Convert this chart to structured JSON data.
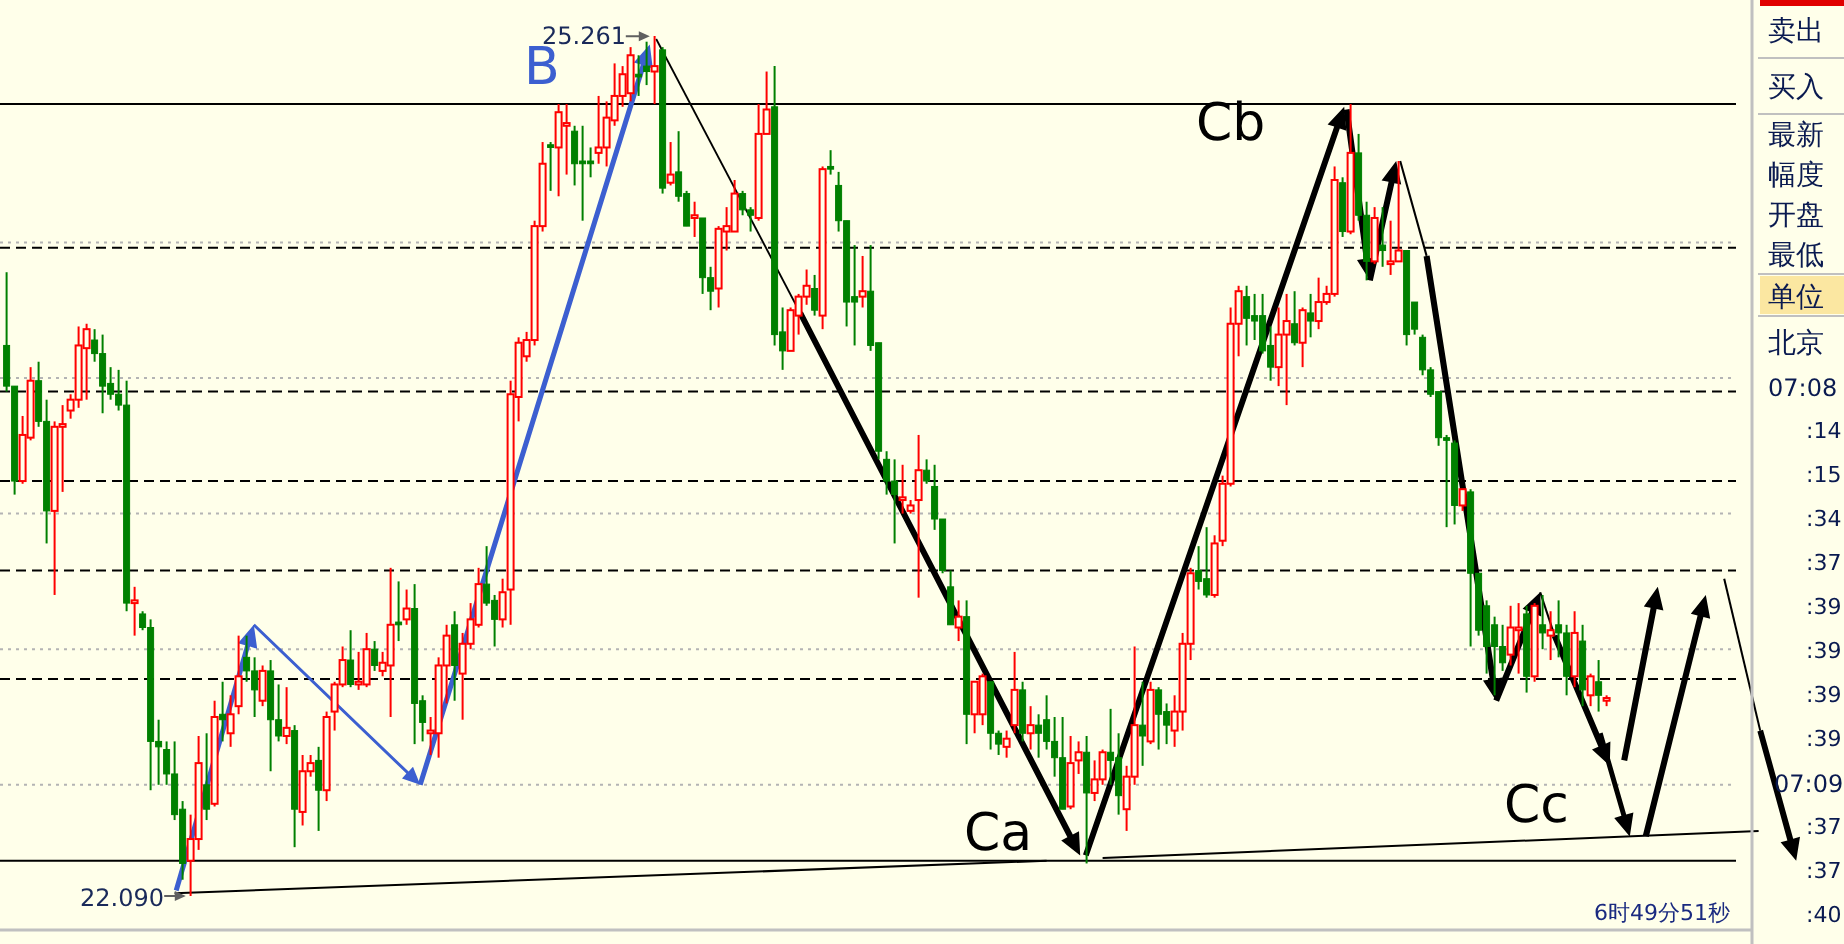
{
  "chart_data": [
    {
      "type": "candlestick",
      "categories": [
        null,
        null,
        null,
        null,
        null,
        null,
        null,
        null,
        null,
        null,
        null,
        null,
        null,
        null,
        null,
        null,
        null,
        null,
        null,
        null,
        null,
        null,
        null,
        null,
        null,
        null,
        null,
        null,
        null,
        null,
        null,
        null,
        null,
        null,
        null,
        null,
        null,
        null,
        null,
        null,
        null,
        null,
        null,
        null,
        null,
        null,
        null,
        null,
        null,
        null,
        null,
        null,
        null,
        null,
        null,
        null,
        null,
        null,
        null,
        null,
        null,
        null,
        null,
        null,
        null,
        null,
        null,
        null,
        null,
        null,
        null,
        null,
        null,
        null,
        null,
        null,
        null,
        null,
        null,
        null,
        null,
        null,
        null,
        null,
        null,
        null,
        null,
        null,
        null,
        null,
        null,
        null,
        null,
        null,
        null,
        null,
        null,
        null,
        null,
        null,
        null,
        null,
        null,
        null,
        null,
        null,
        null,
        null,
        null,
        null,
        null,
        null,
        null,
        null,
        null,
        null,
        null,
        null,
        null,
        null,
        null,
        null,
        null,
        null,
        null,
        null,
        null,
        null,
        null,
        null,
        null,
        null,
        null,
        null,
        null,
        null,
        null,
        null,
        null,
        null,
        null,
        null,
        null,
        null,
        null,
        null,
        null,
        null,
        null,
        null,
        null,
        null,
        null,
        null,
        null,
        null,
        null,
        null,
        null,
        null,
        null,
        null,
        null,
        null,
        null,
        null,
        null,
        null,
        null,
        null,
        null,
        null,
        null,
        null,
        null,
        null,
        null,
        null,
        null,
        null,
        null,
        null,
        null,
        null,
        null,
        null,
        null,
        null,
        null,
        null,
        null,
        null,
        null,
        null,
        null,
        null,
        null,
        null,
        null,
        null,
        null,
        null,
        null,
        null,
        null,
        null,
        null,
        null,
        null,
        null,
        null,
        null,
        null,
        null,
        null,
        null,
        null,
        null,
        null,
        null,
        null,
        null,
        null,
        null
      ],
      "ohlc": [
        [
          24.12,
          24.39,
          23.95,
          23.97
        ],
        [
          23.97,
          23.97,
          23.57,
          23.62
        ],
        [
          23.62,
          23.86,
          23.61,
          23.79
        ],
        [
          23.78,
          24.04,
          23.77,
          23.99
        ],
        [
          23.99,
          24.06,
          23.82,
          23.84
        ],
        [
          23.84,
          23.92,
          23.39,
          23.51
        ],
        [
          23.51,
          23.84,
          23.2,
          23.82
        ],
        [
          23.82,
          23.9,
          23.58,
          23.83
        ],
        [
          23.88,
          23.94,
          23.85,
          23.92
        ],
        [
          23.92,
          24.19,
          23.89,
          24.12
        ],
        [
          24.11,
          24.2,
          23.92,
          24.18
        ],
        [
          24.14,
          24.18,
          24.06,
          24.09
        ],
        [
          24.09,
          24.16,
          23.87,
          23.97
        ],
        [
          23.98,
          24.04,
          23.92,
          23.94
        ],
        [
          23.94,
          24.03,
          23.88,
          23.9
        ],
        [
          23.9,
          23.99,
          23.14,
          23.17
        ],
        [
          23.17,
          23.23,
          23.05,
          23.18
        ],
        [
          23.13,
          23.14,
          23.07,
          23.08
        ],
        [
          23.08,
          23.11,
          22.48,
          22.66
        ],
        [
          22.66,
          22.74,
          22.5,
          22.64
        ],
        [
          22.63,
          22.66,
          22.5,
          22.54
        ],
        [
          22.54,
          22.66,
          22.37,
          22.39
        ],
        [
          22.41,
          22.44,
          22.15,
          22.21
        ],
        [
          22.22,
          22.39,
          22.09,
          22.3
        ],
        [
          22.3,
          22.68,
          22.26,
          22.58
        ],
        [
          22.5,
          22.69,
          22.37,
          22.41
        ],
        [
          22.43,
          22.81,
          22.42,
          22.75
        ],
        [
          22.76,
          22.88,
          22.66,
          22.74
        ],
        [
          22.69,
          22.83,
          22.64,
          22.76
        ],
        [
          22.79,
          23.05,
          22.76,
          22.9
        ],
        [
          22.97,
          23.05,
          22.88,
          22.92
        ],
        [
          22.92,
          22.97,
          22.75,
          22.85
        ],
        [
          22.81,
          22.94,
          22.79,
          22.92
        ],
        [
          22.92,
          22.96,
          22.55,
          22.74
        ],
        [
          22.74,
          22.87,
          22.66,
          22.68
        ],
        [
          22.68,
          22.86,
          22.65,
          22.71
        ],
        [
          22.7,
          22.72,
          22.27,
          22.41
        ],
        [
          22.4,
          22.61,
          22.35,
          22.55
        ],
        [
          22.55,
          22.61,
          22.53,
          22.58
        ],
        [
          22.59,
          22.64,
          22.33,
          22.48
        ],
        [
          22.48,
          22.77,
          22.44,
          22.75
        ],
        [
          22.77,
          22.88,
          22.7,
          22.87
        ],
        [
          22.87,
          23.01,
          22.86,
          22.96
        ],
        [
          22.96,
          23.07,
          22.86,
          22.87
        ],
        [
          22.87,
          22.99,
          22.85,
          22.88
        ],
        [
          22.87,
          23.06,
          22.86,
          23.0
        ],
        [
          23.0,
          23.03,
          22.92,
          22.94
        ],
        [
          22.92,
          22.99,
          22.9,
          22.95
        ],
        [
          22.94,
          23.3,
          22.75,
          23.09
        ],
        [
          23.1,
          23.25,
          23.03,
          23.09
        ],
        [
          23.11,
          23.22,
          23.09,
          23.15
        ],
        [
          23.15,
          23.24,
          22.65,
          22.8
        ],
        [
          22.81,
          22.83,
          22.66,
          22.73
        ],
        [
          22.69,
          22.75,
          22.61,
          22.7
        ],
        [
          22.69,
          22.97,
          22.6,
          22.94
        ],
        [
          22.94,
          23.09,
          22.8,
          23.05
        ],
        [
          23.09,
          23.14,
          22.81,
          22.94
        ],
        [
          22.91,
          23.06,
          22.74,
          23.02
        ],
        [
          23.02,
          23.17,
          23.0,
          23.11
        ],
        [
          23.09,
          23.3,
          23.08,
          23.24
        ],
        [
          23.24,
          23.38,
          23.16,
          23.17
        ],
        [
          23.18,
          23.2,
          23.01,
          23.11
        ],
        [
          23.11,
          23.26,
          23.08,
          23.21
        ],
        [
          23.22,
          23.99,
          23.09,
          23.94
        ],
        [
          23.93,
          24.15,
          23.84,
          24.13
        ],
        [
          24.08,
          24.17,
          24.06,
          24.14
        ],
        [
          24.14,
          24.58,
          24.12,
          24.56
        ],
        [
          24.56,
          24.87,
          24.54,
          24.79
        ],
        [
          24.86,
          24.87,
          24.69,
          24.85
        ],
        [
          24.85,
          25.01,
          24.67,
          24.98
        ],
        [
          24.93,
          25.01,
          24.75,
          24.94
        ],
        [
          24.91,
          24.93,
          24.71,
          24.79
        ],
        [
          24.8,
          24.93,
          24.58,
          24.79
        ],
        [
          24.8,
          24.85,
          24.74,
          24.79
        ],
        [
          24.83,
          25.04,
          24.79,
          24.85
        ],
        [
          24.85,
          25.02,
          24.78,
          24.96
        ],
        [
          24.95,
          25.16,
          24.93,
          25.04
        ],
        [
          25.04,
          25.15,
          25.0,
          25.12
        ],
        [
          25.05,
          25.22,
          25.02,
          25.19
        ],
        [
          25.12,
          25.19,
          25.04,
          25.11
        ],
        [
          25.15,
          25.24,
          25.08,
          25.13
        ],
        [
          25.13,
          25.261,
          25.01,
          25.15
        ],
        [
          25.21,
          25.22,
          24.68,
          24.7
        ],
        [
          24.72,
          24.87,
          24.71,
          24.75
        ],
        [
          24.76,
          24.91,
          24.65,
          24.67
        ],
        [
          24.68,
          24.69,
          24.56,
          24.56
        ],
        [
          24.59,
          24.65,
          24.52,
          24.6
        ],
        [
          24.59,
          24.59,
          24.31,
          24.37
        ],
        [
          24.37,
          24.41,
          24.25,
          24.32
        ],
        [
          24.33,
          24.56,
          24.26,
          24.55
        ],
        [
          24.54,
          24.63,
          24.47,
          24.56
        ],
        [
          24.54,
          24.73,
          24.54,
          24.68
        ],
        [
          24.68,
          24.69,
          24.6,
          24.62
        ],
        [
          24.62,
          24.63,
          24.54,
          24.6
        ],
        [
          24.59,
          25.01,
          24.58,
          24.9
        ],
        [
          24.9,
          25.13,
          24.9,
          24.99
        ],
        [
          25.0,
          25.15,
          24.12,
          24.16
        ],
        [
          24.17,
          24.26,
          24.03,
          24.1
        ],
        [
          24.1,
          24.26,
          24.1,
          24.25
        ],
        [
          24.23,
          24.31,
          24.16,
          24.3
        ],
        [
          24.3,
          24.4,
          24.27,
          24.34
        ],
        [
          24.33,
          24.38,
          24.23,
          24.25
        ],
        [
          24.23,
          24.78,
          24.18,
          24.77
        ],
        [
          24.78,
          24.84,
          24.75,
          24.77
        ],
        [
          24.71,
          24.76,
          24.54,
          24.58
        ],
        [
          24.58,
          24.58,
          24.19,
          24.28
        ],
        [
          24.3,
          24.49,
          24.12,
          24.28
        ],
        [
          24.3,
          24.45,
          24.26,
          24.32
        ],
        [
          24.32,
          24.49,
          24.1,
          24.12
        ],
        [
          24.13,
          24.13,
          23.7,
          23.73
        ],
        [
          23.7,
          23.73,
          23.57,
          23.62
        ],
        [
          23.62,
          23.7,
          23.39,
          23.57
        ],
        [
          23.55,
          23.68,
          23.5,
          23.56
        ],
        [
          23.51,
          23.55,
          23.5,
          23.53
        ],
        [
          23.55,
          23.79,
          23.19,
          23.66
        ],
        [
          23.66,
          23.7,
          23.61,
          23.62
        ],
        [
          23.6,
          23.68,
          23.44,
          23.48
        ],
        [
          23.48,
          23.48,
          23.28,
          23.29
        ],
        [
          23.23,
          23.29,
          23.09,
          23.09
        ],
        [
          23.08,
          23.18,
          23.03,
          23.12
        ],
        [
          23.12,
          23.18,
          22.65,
          22.76
        ],
        [
          22.76,
          22.88,
          22.69,
          22.88
        ],
        [
          22.76,
          22.91,
          22.72,
          22.9
        ],
        [
          22.88,
          22.88,
          22.63,
          22.69
        ],
        [
          22.69,
          22.7,
          22.61,
          22.65
        ],
        [
          22.64,
          22.7,
          22.6,
          22.67
        ],
        [
          22.72,
          22.99,
          22.69,
          22.85
        ],
        [
          22.85,
          22.88,
          22.66,
          22.69
        ],
        [
          22.69,
          22.79,
          22.63,
          22.72
        ],
        [
          22.72,
          22.76,
          22.6,
          22.69
        ],
        [
          22.74,
          22.83,
          22.63,
          22.66
        ],
        [
          22.66,
          22.75,
          22.53,
          22.6
        ],
        [
          22.6,
          22.75,
          22.41,
          22.41
        ],
        [
          22.42,
          22.68,
          22.41,
          22.58
        ],
        [
          22.59,
          22.66,
          22.54,
          22.62
        ],
        [
          22.62,
          22.68,
          22.21,
          22.47
        ],
        [
          22.47,
          22.59,
          22.44,
          22.52
        ],
        [
          22.52,
          22.63,
          22.5,
          22.62
        ],
        [
          22.62,
          22.78,
          22.5,
          22.59
        ],
        [
          22.6,
          22.69,
          22.39,
          22.46
        ],
        [
          22.41,
          22.57,
          22.33,
          22.53
        ],
        [
          22.53,
          23.01,
          22.5,
          22.72
        ],
        [
          22.72,
          22.88,
          22.57,
          22.68
        ],
        [
          22.66,
          22.88,
          22.65,
          22.85
        ],
        [
          22.85,
          22.86,
          22.63,
          22.76
        ],
        [
          22.77,
          22.8,
          22.65,
          22.72
        ],
        [
          22.7,
          22.83,
          22.64,
          22.77
        ],
        [
          22.77,
          23.06,
          22.7,
          23.02
        ],
        [
          23.02,
          23.3,
          22.96,
          23.28
        ],
        [
          23.29,
          23.38,
          23.22,
          23.25
        ],
        [
          23.26,
          23.45,
          23.19,
          23.2
        ],
        [
          23.2,
          23.42,
          23.19,
          23.39
        ],
        [
          23.4,
          23.64,
          23.38,
          23.61
        ],
        [
          23.61,
          24.26,
          23.6,
          24.2
        ],
        [
          24.2,
          24.34,
          24.08,
          24.32
        ],
        [
          24.3,
          24.34,
          24.12,
          24.22
        ],
        [
          24.23,
          24.31,
          24.14,
          24.21
        ],
        [
          24.23,
          24.31,
          24.09,
          24.1
        ],
        [
          24.12,
          24.19,
          23.99,
          24.04
        ],
        [
          24.04,
          24.26,
          23.97,
          24.16
        ],
        [
          24.16,
          24.31,
          23.9,
          24.21
        ],
        [
          24.2,
          24.32,
          24.12,
          24.13
        ],
        [
          24.13,
          24.26,
          24.04,
          24.25
        ],
        [
          24.24,
          24.31,
          24.15,
          24.21
        ],
        [
          24.21,
          24.37,
          24.18,
          24.28
        ],
        [
          24.28,
          24.34,
          24.27,
          24.31
        ],
        [
          24.31,
          24.78,
          24.3,
          24.73
        ],
        [
          24.72,
          24.74,
          24.52,
          24.54
        ],
        [
          24.54,
          25.01,
          24.53,
          24.83
        ],
        [
          24.83,
          24.9,
          24.58,
          24.6
        ],
        [
          24.6,
          24.65,
          24.36,
          24.43
        ],
        [
          24.43,
          24.63,
          24.42,
          24.59
        ],
        [
          24.49,
          24.63,
          24.41,
          24.47
        ],
        [
          24.42,
          24.58,
          24.38,
          24.43
        ],
        [
          24.43,
          24.8,
          24.43,
          24.47
        ],
        [
          24.47,
          24.47,
          24.12,
          24.16
        ],
        [
          24.28,
          24.28,
          24.16,
          24.18
        ],
        [
          24.15,
          24.16,
          24.01,
          24.03
        ],
        [
          24.03,
          24.04,
          23.93,
          23.94
        ],
        [
          23.95,
          23.95,
          23.75,
          23.78
        ],
        [
          23.78,
          23.79,
          23.45,
          23.77
        ],
        [
          23.76,
          23.77,
          23.46,
          23.53
        ],
        [
          23.53,
          23.59,
          23.51,
          23.59
        ],
        [
          23.58,
          23.59,
          23.01,
          23.28
        ],
        [
          23.28,
          23.28,
          23.05,
          23.07
        ],
        [
          23.16,
          23.18,
          22.91,
          23.01
        ],
        [
          23.09,
          23.12,
          22.83,
          23.01
        ],
        [
          23.01,
          23.09,
          22.92,
          22.95
        ],
        [
          22.98,
          23.16,
          22.94,
          23.08
        ],
        [
          23.07,
          23.17,
          22.91,
          23.08
        ],
        [
          23.13,
          23.16,
          22.84,
          22.9
        ],
        [
          22.9,
          23.17,
          22.88,
          23.16
        ],
        [
          23.09,
          23.2,
          23.0,
          23.06
        ],
        [
          23.05,
          23.14,
          22.96,
          23.07
        ],
        [
          23.09,
          23.18,
          22.97,
          23.06
        ],
        [
          23.06,
          23.09,
          22.83,
          22.9
        ],
        [
          22.9,
          23.14,
          22.86,
          23.06
        ],
        [
          23.03,
          23.09,
          22.79,
          22.85
        ],
        [
          22.83,
          22.91,
          22.79,
          22.9
        ],
        [
          22.88,
          22.96,
          22.77,
          22.83
        ],
        [
          22.81,
          22.83,
          22.79,
          22.82
        ],
        null,
        null,
        null,
        null,
        null,
        null,
        null,
        null,
        null,
        null,
        null,
        null,
        null,
        null,
        null,
        null,
        null,
        null,
        null,
        null,
        null,
        null,
        null
      ],
      "ref_lines": [
        {
          "axis": "y",
          "value": 25.01,
          "color": "#000000",
          "line_style": "solid"
        },
        {
          "axis": "y",
          "value": 24.5,
          "color": "#b4b4b4",
          "line_style": "dotted"
        },
        {
          "axis": "y",
          "value": 24.48,
          "color": "#000000",
          "line_style": "dashed"
        },
        {
          "axis": "y",
          "value": 24.0,
          "color": "#b4b4b4",
          "line_style": "dotted"
        },
        {
          "axis": "y",
          "value": 23.95,
          "color": "#000000",
          "line_style": "dashed"
        },
        {
          "axis": "y",
          "value": 23.62,
          "color": "#000000",
          "line_style": "dashed"
        },
        {
          "axis": "y",
          "value": 23.5,
          "color": "#b4b4b4",
          "line_style": "dotted"
        },
        {
          "axis": "y",
          "value": 23.29,
          "color": "#000000",
          "line_style": "dashed"
        },
        {
          "axis": "y",
          "value": 23.0,
          "color": "#b4b4b4",
          "line_style": "dotted"
        },
        {
          "axis": "y",
          "value": 22.89,
          "color": "#000000",
          "line_style": "dashed"
        },
        {
          "axis": "y",
          "value": 22.5,
          "color": "#b4b4b4",
          "line_style": "dotted"
        },
        {
          "axis": "y",
          "value": 22.22,
          "color": "#000000",
          "line_style": "solid"
        }
      ],
      "series": [
        {
          "type": "line",
          "color": "#000000",
          "values": [
            null,
            null,
            null,
            null,
            null,
            null,
            null,
            null,
            null,
            null,
            null,
            null,
            null,
            null,
            null,
            null,
            null,
            null,
            null,
            null,
            null,
            22.1,
            null,
            null,
            null,
            null,
            null,
            null,
            null,
            null,
            null,
            null,
            null,
            null,
            null,
            null,
            null,
            null,
            null,
            null,
            null,
            null,
            null,
            null,
            null,
            null,
            null,
            null,
            null,
            null,
            null,
            null,
            null,
            null,
            null,
            null,
            null,
            null,
            null,
            null,
            null,
            null,
            null,
            null,
            null,
            null,
            null,
            null,
            null,
            null,
            null,
            null,
            null,
            null,
            null,
            null,
            null,
            null,
            null,
            null,
            null,
            null,
            null,
            null,
            null,
            null,
            null,
            null,
            null,
            null,
            null,
            null,
            null,
            null,
            null,
            null,
            null,
            null,
            null,
            null,
            null,
            null,
            null,
            null,
            null,
            null,
            null,
            null,
            null,
            null,
            null,
            null,
            null,
            null,
            null,
            null,
            null,
            null,
            null,
            null,
            null,
            null,
            null,
            null,
            null,
            null,
            null,
            null,
            null,
            null,
            22.22,
            null,
            null,
            null,
            null,
            null,
            null,
            null,
            null,
            null,
            null,
            null,
            null,
            null,
            null,
            null,
            null,
            null,
            null,
            null,
            null,
            null,
            null,
            null,
            null,
            null,
            null,
            null,
            null,
            null,
            null,
            null,
            null,
            null,
            null,
            null,
            null,
            null,
            null,
            null,
            null,
            null,
            null,
            null,
            null,
            null,
            null,
            null,
            null,
            null,
            null,
            null,
            null,
            null,
            null,
            null,
            null,
            null,
            null,
            null,
            null,
            null,
            null,
            null,
            null,
            null,
            null,
            null,
            null,
            null,
            null,
            null,
            null,
            null,
            null,
            null,
            null,
            null,
            null,
            null,
            null,
            null,
            null,
            null,
            null,
            null,
            null,
            null,
            null,
            null,
            null,
            null,
            null,
            null
          ]
        },
        {
          "type": "line",
          "color": "#000000",
          "values": [
            null,
            null,
            null,
            null,
            null,
            null,
            null,
            null,
            null,
            null,
            null,
            null,
            null,
            null,
            null,
            null,
            null,
            null,
            null,
            null,
            null,
            null,
            null,
            null,
            null,
            null,
            null,
            null,
            null,
            null,
            null,
            null,
            null,
            null,
            null,
            null,
            null,
            null,
            null,
            null,
            null,
            null,
            null,
            null,
            null,
            null,
            null,
            null,
            null,
            null,
            null,
            null,
            null,
            null,
            null,
            null,
            null,
            null,
            null,
            null,
            null,
            null,
            null,
            null,
            null,
            null,
            null,
            null,
            null,
            null,
            null,
            null,
            null,
            null,
            null,
            null,
            null,
            null,
            null,
            null,
            null,
            null,
            null,
            null,
            null,
            null,
            null,
            null,
            null,
            null,
            null,
            null,
            null,
            null,
            null,
            null,
            null,
            null,
            null,
            null,
            null,
            null,
            null,
            null,
            null,
            null,
            null,
            null,
            null,
            null,
            null,
            null,
            null,
            null,
            null,
            null,
            null,
            null,
            null,
            null,
            null,
            null,
            null,
            null,
            null,
            null,
            null,
            null,
            null,
            null,
            null,
            null,
            null,
            null,
            null,
            null,
            null,
            22.23,
            null,
            null,
            null,
            null,
            null,
            null,
            null,
            null,
            null,
            null,
            null,
            null,
            null,
            null,
            null,
            null,
            null,
            null,
            null,
            null,
            null,
            null,
            null,
            null,
            null,
            null,
            null,
            null,
            null,
            null,
            null,
            null,
            null,
            null,
            null,
            null,
            null,
            null,
            null,
            null,
            null,
            null,
            null,
            null,
            null,
            null,
            null,
            null,
            null,
            null,
            null,
            null,
            null,
            null,
            null,
            null,
            null,
            null,
            null,
            null,
            null,
            null,
            null,
            null,
            null,
            null,
            null,
            null,
            null,
            null,
            null,
            null,
            null,
            null,
            null,
            null,
            null,
            null,
            null,
            null,
            null,
            22.33,
            null,
            null,
            null,
            null
          ]
        }
      ],
      "annotations": [
        "B",
        "Ca",
        "Cb",
        "Cc",
        "25.261",
        "22.090",
        "6时49分51秒"
      ]
    },
    {
      "type": "other",
      "annotations": [
        "卖出",
        "买入",
        "最新",
        "幅度",
        "开盘",
        "最低",
        "单位",
        "北京",
        "07:08",
        ":14",
        ":15",
        ":34",
        ":37",
        ":39",
        ":39",
        ":39",
        ":39",
        "07:09",
        ":37",
        ":37",
        ":40"
      ]
    }
  ]
}
